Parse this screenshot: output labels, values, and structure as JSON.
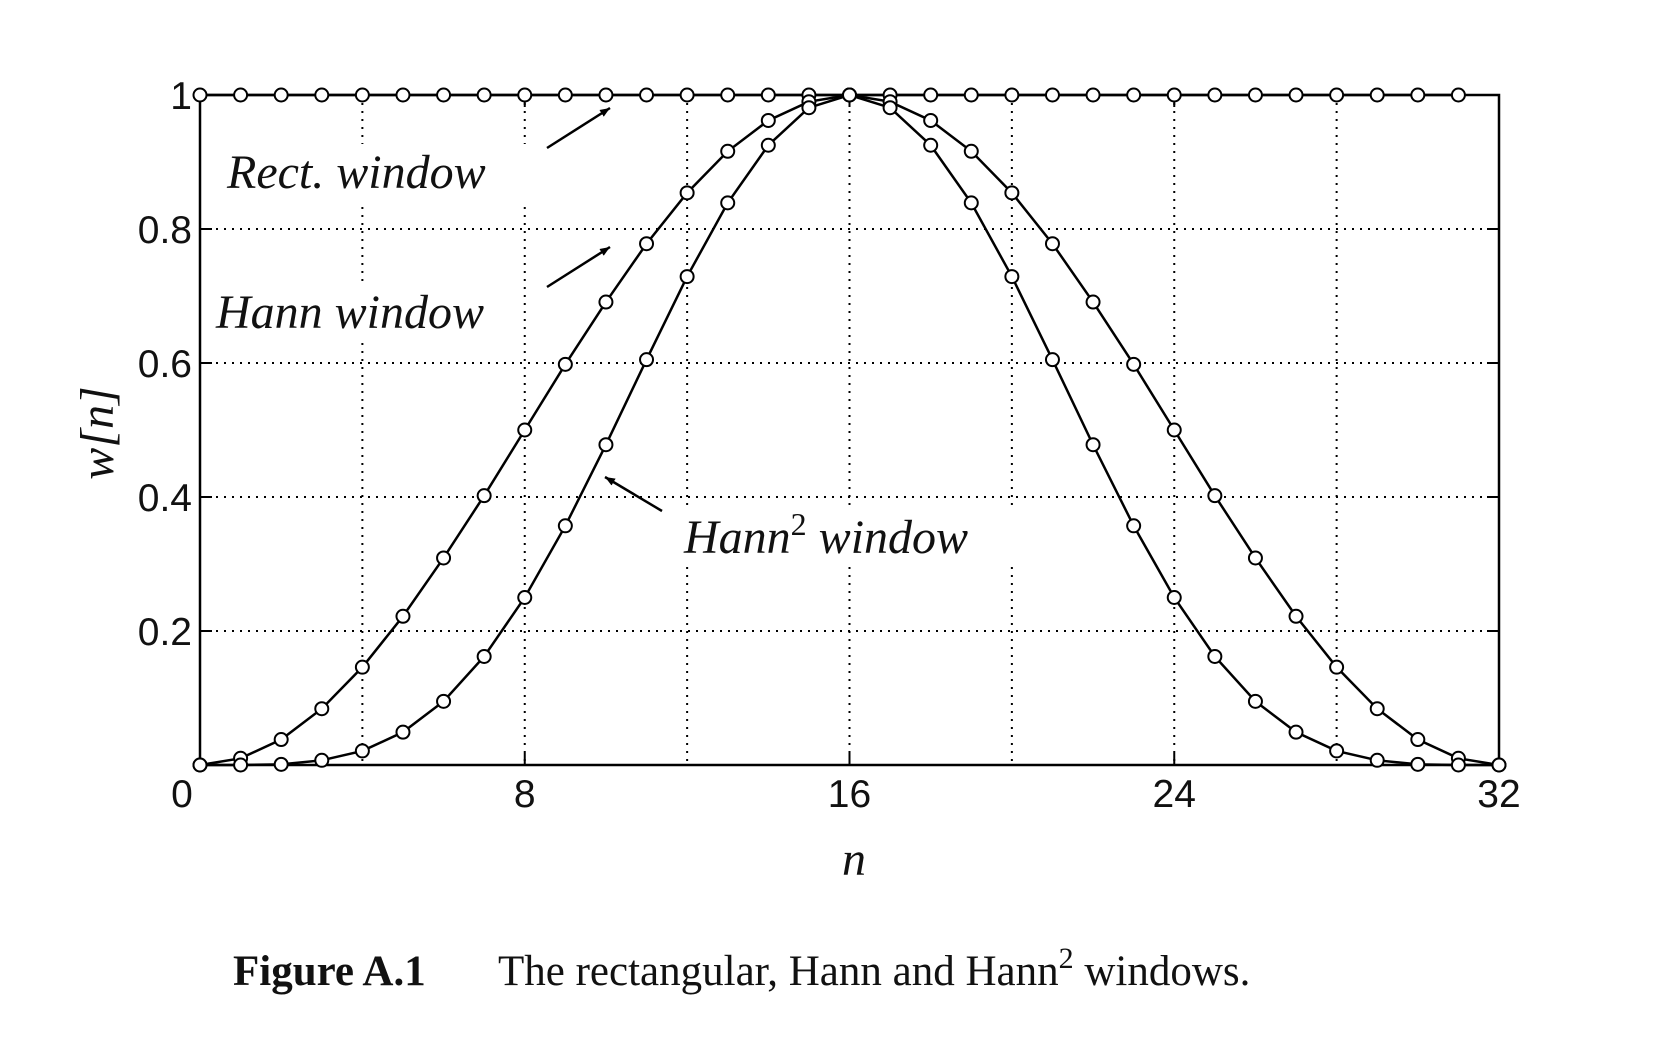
{
  "chart_data": {
    "type": "line",
    "xlabel": "n",
    "ylabel": "w[n]",
    "xlim": [
      0,
      32
    ],
    "ylim": [
      0,
      1
    ],
    "xticks": [
      0,
      8,
      16,
      24,
      32
    ],
    "yticks": [
      0,
      0.2,
      0.4,
      0.6,
      0.8,
      1
    ],
    "xgrid": [
      4,
      8,
      12,
      16,
      20,
      24,
      28
    ],
    "ygrid": [
      0.2,
      0.4,
      0.6,
      0.8
    ],
    "grid": true,
    "marker": "circle",
    "color": "#000000",
    "series": [
      {
        "name": "Rect. window",
        "x": [
          0,
          1,
          2,
          3,
          4,
          5,
          6,
          7,
          8,
          9,
          10,
          11,
          12,
          13,
          14,
          15,
          16,
          17,
          18,
          19,
          20,
          21,
          22,
          23,
          24,
          25,
          26,
          27,
          28,
          29,
          30,
          31
        ],
        "values": [
          1,
          1,
          1,
          1,
          1,
          1,
          1,
          1,
          1,
          1,
          1,
          1,
          1,
          1,
          1,
          1,
          1,
          1,
          1,
          1,
          1,
          1,
          1,
          1,
          1,
          1,
          1,
          1,
          1,
          1,
          1,
          1
        ]
      },
      {
        "name": "Hann window",
        "x": [
          0,
          1,
          2,
          3,
          4,
          5,
          6,
          7,
          8,
          9,
          10,
          11,
          12,
          13,
          14,
          15,
          16,
          17,
          18,
          19,
          20,
          21,
          22,
          23,
          24,
          25,
          26,
          27,
          28,
          29,
          30,
          31,
          32
        ],
        "values": [
          0,
          0.01,
          0.038,
          0.084,
          0.146,
          0.222,
          0.309,
          0.402,
          0.5,
          0.598,
          0.691,
          0.778,
          0.854,
          0.916,
          0.962,
          0.99,
          1,
          0.99,
          0.962,
          0.916,
          0.854,
          0.778,
          0.691,
          0.598,
          0.5,
          0.402,
          0.309,
          0.222,
          0.146,
          0.084,
          0.038,
          0.01,
          0
        ]
      },
      {
        "name": "Hann2 window",
        "x": [
          0,
          1,
          2,
          3,
          4,
          5,
          6,
          7,
          8,
          9,
          10,
          11,
          12,
          13,
          14,
          15,
          16,
          17,
          18,
          19,
          20,
          21,
          22,
          23,
          24,
          25,
          26,
          27,
          28,
          29,
          30,
          31,
          32
        ],
        "values": [
          0,
          0,
          0.001,
          0.007,
          0.021,
          0.049,
          0.095,
          0.162,
          0.25,
          0.357,
          0.478,
          0.605,
          0.729,
          0.839,
          0.925,
          0.981,
          1,
          0.981,
          0.925,
          0.839,
          0.729,
          0.605,
          0.478,
          0.357,
          0.25,
          0.162,
          0.095,
          0.049,
          0.021,
          0.007,
          0.001,
          0,
          0
        ]
      }
    ],
    "annotations": [
      {
        "text": "Rect. window"
      },
      {
        "text": "Hann window"
      },
      {
        "text": "Hann",
        "sup": "2",
        "rest": " window"
      }
    ],
    "caption": {
      "label": "Figure A.1",
      "text": "The rectangular, Hann and Hann",
      "sup": "2",
      "rest": " windows."
    }
  }
}
